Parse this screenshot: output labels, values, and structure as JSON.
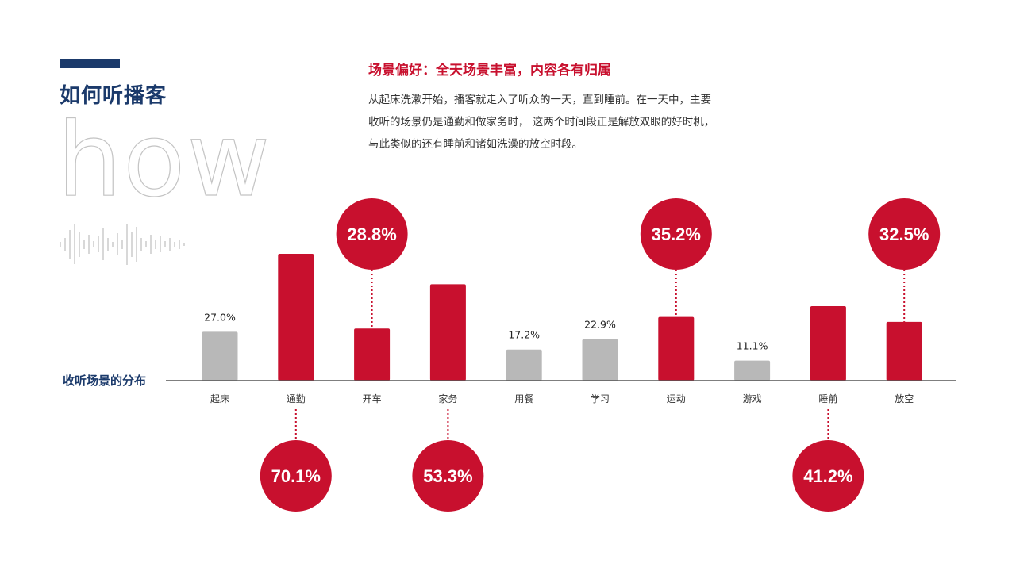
{
  "header": {
    "title": "如何听播客",
    "watermark": "how",
    "subtitle": "场景偏好：全天场景丰富，内容各有归属",
    "description": "从起床洗漱开始，播客就走入了听众的一天，直到睡前。在一天中，主要收听的场景仍是通勤和做家务时， 这两个时间段正是解放双眼的好时机，与此类似的还有睡前和诸如洗澡的放空时段。"
  },
  "chart_data": {
    "type": "bar",
    "title": "收听场景的分布",
    "categories": [
      "起床",
      "通勤",
      "开车",
      "家务",
      "用餐",
      "学习",
      "运动",
      "游戏",
      "睡前",
      "放空"
    ],
    "values": [
      27.0,
      70.1,
      28.8,
      53.3,
      17.2,
      22.9,
      35.2,
      11.1,
      41.2,
      32.5
    ],
    "value_labels": [
      "27.0%",
      "70.1%",
      "28.8%",
      "53.3%",
      "17.2%",
      "22.9%",
      "35.2%",
      "11.1%",
      "41.2%",
      "32.5%"
    ],
    "highlighted": [
      false,
      true,
      true,
      true,
      false,
      false,
      true,
      false,
      true,
      true
    ],
    "callout_side": [
      "none",
      "below",
      "above",
      "below",
      "none",
      "none",
      "above",
      "none",
      "below",
      "above"
    ],
    "ylim": [
      0,
      72
    ],
    "grid": false,
    "colors": {
      "highlight": "#c8102e",
      "normal": "#b8b8b8",
      "axis": "#555555",
      "title": "#1b3a6b"
    }
  }
}
